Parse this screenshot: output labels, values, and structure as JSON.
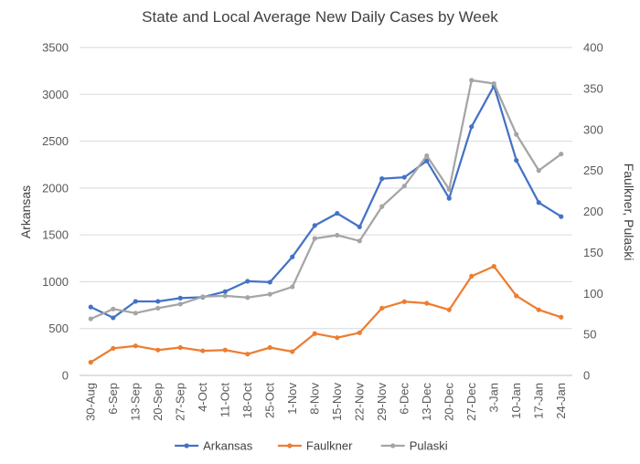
{
  "chart_data": {
    "type": "line",
    "title": "State and Local Average New Daily Cases by Week",
    "xlabel": "",
    "ylabel_left": "Arkansas",
    "ylabel_right": "Faulkner, Pulaski",
    "ylim_left": [
      0,
      3500
    ],
    "ylim_right": [
      0,
      400
    ],
    "yticks_left": [
      "0",
      "500",
      "1000",
      "1500",
      "2000",
      "2500",
      "3000",
      "3500"
    ],
    "yticks_right": [
      "0",
      "50",
      "100",
      "150",
      "200",
      "250",
      "300",
      "350",
      "400"
    ],
    "categories": [
      "30-Aug",
      "6-Sep",
      "13-Sep",
      "20-Sep",
      "27-Sep",
      "4-Oct",
      "11-Oct",
      "18-Oct",
      "25-Oct",
      "1-Nov",
      "8-Nov",
      "15-Nov",
      "22-Nov",
      "29-Nov",
      "6-Dec",
      "13-Dec",
      "20-Dec",
      "27-Dec",
      "3-Jan",
      "10-Jan",
      "17-Jan",
      "24-Jan"
    ],
    "legend_position": "bottom",
    "grid": true,
    "series": [
      {
        "name": "Arkansas",
        "axis": "left",
        "color": "#4472C4",
        "values": [
          730,
          615,
          790,
          790,
          825,
          835,
          895,
          1005,
          995,
          1265,
          1600,
          1730,
          1585,
          2100,
          2115,
          2290,
          1890,
          2655,
          3090,
          2295,
          1845,
          1695
        ]
      },
      {
        "name": "Faulkner",
        "axis": "right",
        "color": "#ED7D31",
        "values": [
          16,
          33,
          36,
          31,
          34,
          30,
          31,
          26,
          34,
          29,
          51,
          46,
          52,
          82,
          90,
          88,
          80,
          121,
          133,
          97,
          80,
          71
        ]
      },
      {
        "name": "Pulaski",
        "axis": "right",
        "color": "#A5A5A5",
        "values": [
          69,
          81,
          76,
          82,
          87,
          96,
          97,
          95,
          99,
          108,
          167,
          171,
          164,
          206,
          231,
          268,
          227,
          360,
          356,
          294,
          250,
          270
        ]
      }
    ]
  }
}
